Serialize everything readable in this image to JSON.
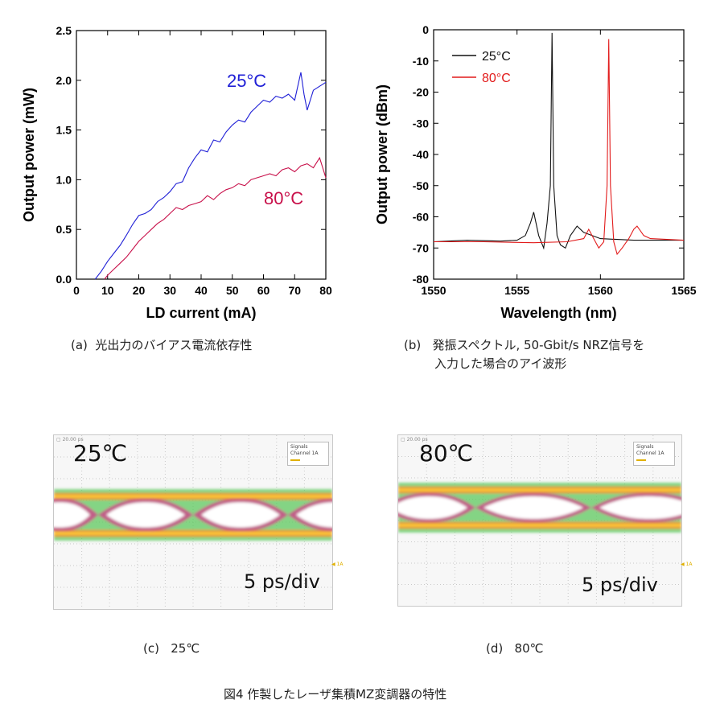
{
  "chart_data": [
    {
      "type": "line",
      "xlabel": "LD current (mA)",
      "ylabel": "Output power (mW)",
      "xlim": [
        0,
        80
      ],
      "ylim": [
        0,
        2.5
      ],
      "xticks": [
        0,
        10,
        20,
        30,
        40,
        50,
        60,
        70,
        80
      ],
      "yticks": [
        0.0,
        0.5,
        1.0,
        1.5,
        2.0,
        2.5
      ],
      "ytick_labels": [
        "0.0",
        "0.5",
        "1.0",
        "1.5",
        "2.0",
        "2.5"
      ],
      "series": [
        {
          "name": "25°C",
          "color": "#1f1fd6",
          "x": [
            6,
            8,
            10,
            12,
            14,
            16,
            18,
            20,
            22,
            24,
            26,
            28,
            30,
            32,
            34,
            36,
            38,
            40,
            42,
            44,
            46,
            48,
            50,
            52,
            54,
            56,
            58,
            60,
            62,
            64,
            66,
            68,
            70,
            72,
            73,
            74,
            76,
            78,
            80
          ],
          "y": [
            0.0,
            0.08,
            0.18,
            0.26,
            0.34,
            0.44,
            0.55,
            0.64,
            0.66,
            0.7,
            0.78,
            0.82,
            0.88,
            0.96,
            0.98,
            1.12,
            1.22,
            1.3,
            1.28,
            1.4,
            1.38,
            1.48,
            1.55,
            1.6,
            1.58,
            1.68,
            1.74,
            1.8,
            1.78,
            1.84,
            1.82,
            1.86,
            1.8,
            2.08,
            1.86,
            1.7,
            1.9,
            1.94,
            1.98
          ]
        },
        {
          "name": "80°C",
          "color": "#c8104a",
          "x": [
            9,
            10,
            12,
            14,
            16,
            18,
            20,
            22,
            24,
            26,
            28,
            30,
            32,
            34,
            36,
            38,
            40,
            42,
            44,
            46,
            48,
            50,
            52,
            54,
            56,
            58,
            60,
            62,
            64,
            66,
            68,
            70,
            72,
            74,
            76,
            78,
            80
          ],
          "y": [
            0.0,
            0.04,
            0.1,
            0.16,
            0.22,
            0.3,
            0.38,
            0.44,
            0.5,
            0.56,
            0.6,
            0.66,
            0.72,
            0.7,
            0.74,
            0.76,
            0.78,
            0.84,
            0.8,
            0.86,
            0.9,
            0.92,
            0.96,
            0.94,
            1.0,
            1.02,
            1.04,
            1.06,
            1.04,
            1.1,
            1.12,
            1.08,
            1.14,
            1.16,
            1.12,
            1.22,
            1.02
          ]
        }
      ],
      "annotations": [
        {
          "text": "25°C",
          "color": "#1f1fd6"
        },
        {
          "text": "80°C",
          "color": "#c8104a"
        }
      ]
    },
    {
      "type": "line",
      "xlabel": "Wavelength (nm)",
      "ylabel": "Output power (dBm)",
      "xlim": [
        1550,
        1565
      ],
      "ylim": [
        -80,
        0
      ],
      "xticks": [
        1550,
        1555,
        1560,
        1565
      ],
      "yticks": [
        0,
        -10,
        -20,
        -30,
        -40,
        -50,
        -60,
        -70,
        -80
      ],
      "legend_position": "top-left",
      "series": [
        {
          "name": "25°C",
          "color": "#111111",
          "x": [
            1550,
            1552,
            1554,
            1555,
            1555.5,
            1555.8,
            1556.0,
            1556.3,
            1556.6,
            1556.8,
            1557.0,
            1557.1,
            1557.2,
            1557.4,
            1557.6,
            1557.9,
            1558.2,
            1558.6,
            1559.0,
            1560,
            1562,
            1565
          ],
          "y": [
            -68,
            -67.5,
            -67.8,
            -67.5,
            -66,
            -62,
            -58.5,
            -66,
            -70,
            -62,
            -50,
            -1,
            -50,
            -66,
            -69,
            -70,
            -66,
            -63,
            -65,
            -67,
            -67.5,
            -67.5
          ]
        },
        {
          "name": "80°C",
          "color": "#e21b1b",
          "x": [
            1550,
            1553,
            1556,
            1558,
            1559,
            1559.3,
            1559.6,
            1559.9,
            1560.2,
            1560.4,
            1560.5,
            1560.6,
            1560.8,
            1561.0,
            1561.3,
            1561.7,
            1562.0,
            1562.2,
            1562.6,
            1563,
            1565
          ],
          "y": [
            -68,
            -68,
            -68.3,
            -68,
            -67,
            -64,
            -67,
            -70,
            -68,
            -50,
            -3,
            -50,
            -68,
            -72,
            -70,
            -67,
            -64,
            -63,
            -66,
            -67,
            -67.5
          ]
        }
      ]
    }
  ],
  "captions": {
    "a": "(a)  光出力のバイアス電流依存性",
    "b_line1": "(b)   発振スペクトル, 50-Gbit/s NRZ信号を",
    "b_line2": "入力した場合のアイ波形",
    "c": "(c)   25℃",
    "d": "(d)   80℃",
    "figure": "図4 作製したレーザ集積MZ変調器の特性"
  },
  "eye_c": {
    "temp": "25℃",
    "scale": "5 ps/div",
    "legend_line1": "Signals",
    "legend_line2": "Channel 1A"
  },
  "eye_d": {
    "temp": "80℃",
    "scale": "5 ps/div",
    "legend_line1": "Signals",
    "legend_line2": "Channel 1A"
  }
}
